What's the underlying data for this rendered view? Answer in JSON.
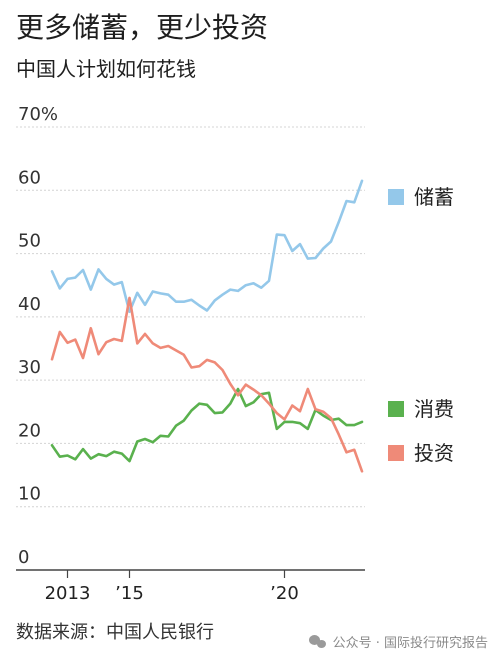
{
  "title": "更多储蓄，更少投资",
  "subtitle": "中国人计划如何花钱",
  "source": "数据来源：中国人民银行",
  "watermark": "公众号 · 国际投行研究报告",
  "chart_data": {
    "type": "line",
    "ylim": [
      0,
      70
    ],
    "y_ticks": [
      0,
      10,
      20,
      30,
      40,
      50,
      60,
      70
    ],
    "y_tick_labels": [
      "0",
      "10",
      "20",
      "30",
      "40",
      "50",
      "60",
      "70%"
    ],
    "x_ticks": [
      {
        "x": 2013.0,
        "label": "2013"
      },
      {
        "x": 2015.0,
        "label": "’15"
      },
      {
        "x": 2020.0,
        "label": "’20"
      }
    ],
    "xlim": [
      2012.5,
      2022.5
    ],
    "grid": true,
    "legend_placement": "right",
    "series": [
      {
        "name": "储蓄",
        "color": "#94c8ea",
        "x": [
          2012.5,
          2012.75,
          2013.0,
          2013.25,
          2013.5,
          2013.75,
          2014.0,
          2014.25,
          2014.5,
          2014.75,
          2015.0,
          2015.25,
          2015.5,
          2015.75,
          2016.0,
          2016.25,
          2016.5,
          2016.75,
          2017.0,
          2017.25,
          2017.5,
          2017.75,
          2018.0,
          2018.25,
          2018.5,
          2018.75,
          2019.0,
          2019.25,
          2019.5,
          2019.75,
          2020.0,
          2020.25,
          2020.5,
          2020.75,
          2021.0,
          2021.25,
          2021.5,
          2021.75,
          2022.0,
          2022.25,
          2022.5
        ],
        "values": [
          47.2,
          44.5,
          46.0,
          46.2,
          47.4,
          44.3,
          47.5,
          46.0,
          45.1,
          45.5,
          40.8,
          43.8,
          41.9,
          44.0,
          43.7,
          43.5,
          42.4,
          42.4,
          42.7,
          41.8,
          41.0,
          42.6,
          43.5,
          44.3,
          44.1,
          45.0,
          45.3,
          44.6,
          45.7,
          53.0,
          52.9,
          50.4,
          51.5,
          49.2,
          49.3,
          50.8,
          51.9,
          55.0,
          58.3,
          58.1,
          61.5
        ]
      },
      {
        "name": "消费",
        "color": "#5ab14e",
        "x": [
          2012.5,
          2012.75,
          2013.0,
          2013.25,
          2013.5,
          2013.75,
          2014.0,
          2014.25,
          2014.5,
          2014.75,
          2015.0,
          2015.25,
          2015.5,
          2015.75,
          2016.0,
          2016.25,
          2016.5,
          2016.75,
          2017.0,
          2017.25,
          2017.5,
          2017.75,
          2018.0,
          2018.25,
          2018.5,
          2018.75,
          2019.0,
          2019.25,
          2019.5,
          2019.75,
          2020.0,
          2020.25,
          2020.5,
          2020.75,
          2021.0,
          2021.25,
          2021.5,
          2021.75,
          2022.0,
          2022.25,
          2022.5
        ],
        "values": [
          19.7,
          17.9,
          18.1,
          17.5,
          19.1,
          17.6,
          18.3,
          18.0,
          18.7,
          18.4,
          17.2,
          20.3,
          20.7,
          20.2,
          21.2,
          21.1,
          22.8,
          23.6,
          25.2,
          26.3,
          26.1,
          24.8,
          24.9,
          26.3,
          28.6,
          25.9,
          26.5,
          27.8,
          28.0,
          22.3,
          23.4,
          23.4,
          23.2,
          22.3,
          25.3,
          24.4,
          23.7,
          23.9,
          22.9,
          22.9,
          23.4
        ]
      },
      {
        "name": "投资",
        "color": "#ef8a78",
        "x": [
          2012.5,
          2012.75,
          2013.0,
          2013.25,
          2013.5,
          2013.75,
          2014.0,
          2014.25,
          2014.5,
          2014.75,
          2015.0,
          2015.25,
          2015.5,
          2015.75,
          2016.0,
          2016.25,
          2016.5,
          2016.75,
          2017.0,
          2017.25,
          2017.5,
          2017.75,
          2018.0,
          2018.25,
          2018.5,
          2018.75,
          2019.0,
          2019.25,
          2019.5,
          2019.75,
          2020.0,
          2020.25,
          2020.5,
          2020.75,
          2021.0,
          2021.25,
          2021.5,
          2021.75,
          2022.0,
          2022.25,
          2022.5
        ],
        "values": [
          33.3,
          37.6,
          35.9,
          36.4,
          33.5,
          38.2,
          34.1,
          36.0,
          36.5,
          36.2,
          43.0,
          35.8,
          37.3,
          35.8,
          35.1,
          35.4,
          34.7,
          34.0,
          32.0,
          32.2,
          33.2,
          32.8,
          31.6,
          29.4,
          27.6,
          29.3,
          28.5,
          27.6,
          26.3,
          24.8,
          23.8,
          26.0,
          25.1,
          28.6,
          25.4,
          25.0,
          24.0,
          21.4,
          18.6,
          19.0,
          15.6
        ]
      }
    ]
  }
}
